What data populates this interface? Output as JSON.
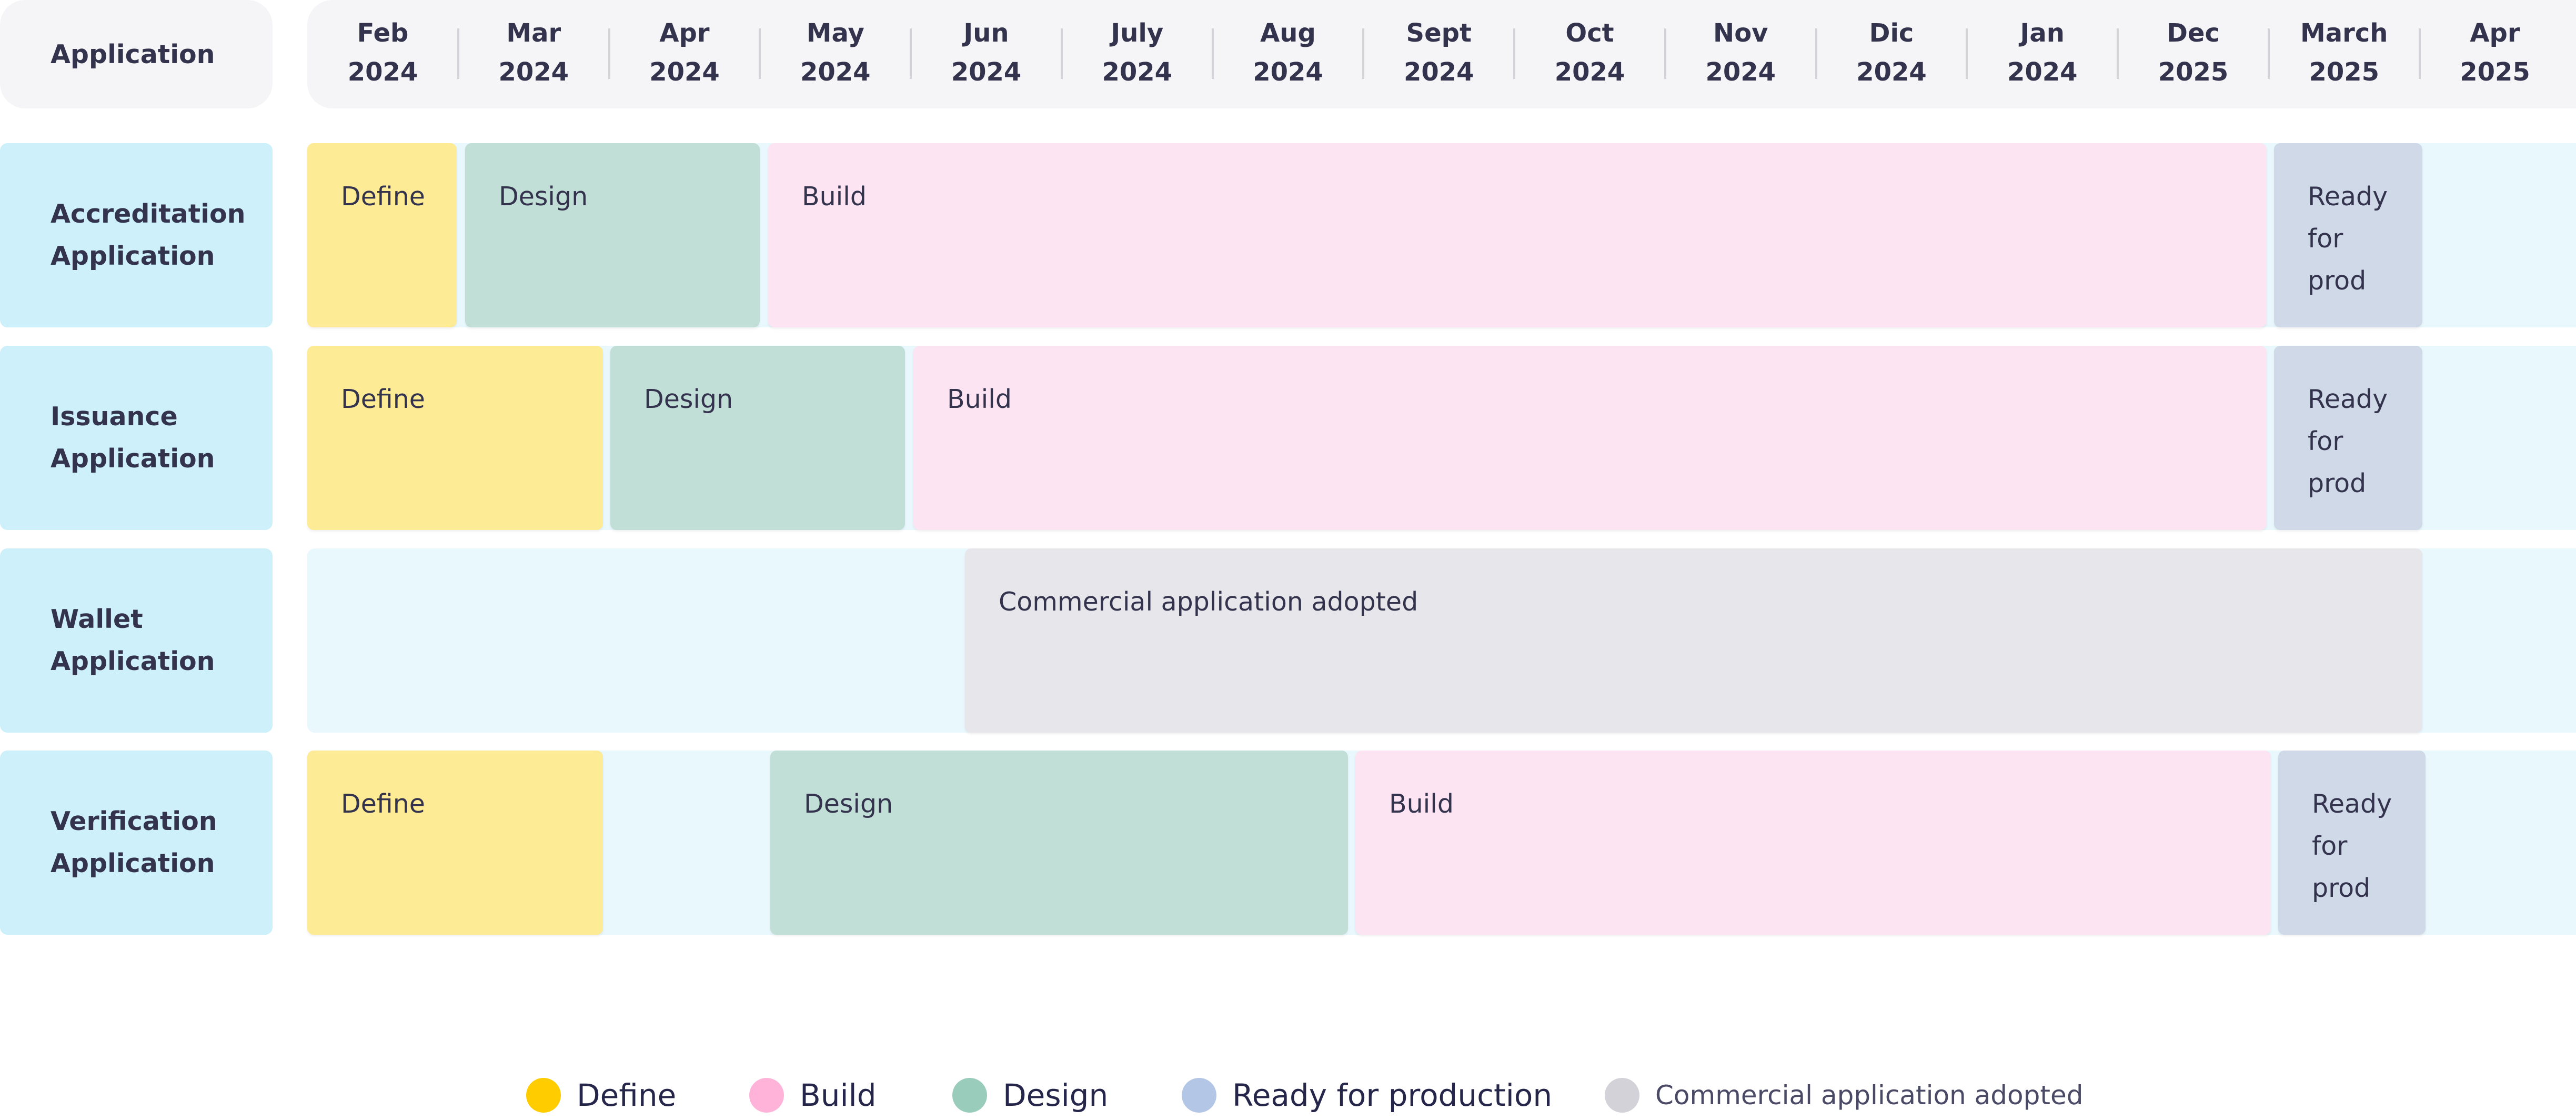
{
  "header": {
    "corner_label": "Application",
    "months": [
      {
        "m": "Feb",
        "y": "2024"
      },
      {
        "m": "Mar",
        "y": "2024"
      },
      {
        "m": "Apr",
        "y": "2024"
      },
      {
        "m": "May",
        "y": "2024"
      },
      {
        "m": "Jun",
        "y": "2024"
      },
      {
        "m": "July",
        "y": "2024"
      },
      {
        "m": "Aug",
        "y": "2024"
      },
      {
        "m": "Sept",
        "y": "2024"
      },
      {
        "m": "Oct",
        "y": "2024"
      },
      {
        "m": "Nov",
        "y": "2024"
      },
      {
        "m": "Dic",
        "y": "2024"
      },
      {
        "m": "Jan",
        "y": "2024"
      },
      {
        "m": "Dec",
        "y": "2025"
      },
      {
        "m": "March",
        "y": "2025"
      },
      {
        "m": "Apr",
        "y": "2025"
      }
    ]
  },
  "rows": [
    {
      "label": [
        "Accreditation",
        "Application"
      ],
      "segments": [
        {
          "phase": "define",
          "text": "Define"
        },
        {
          "phase": "design",
          "text": "Design"
        },
        {
          "phase": "build",
          "text": "Build"
        },
        {
          "phase": "ready",
          "text": "Ready for prod"
        }
      ]
    },
    {
      "label": [
        "Issuance",
        "Application"
      ],
      "segments": [
        {
          "phase": "define",
          "text": "Define"
        },
        {
          "phase": "design",
          "text": "Design"
        },
        {
          "phase": "build",
          "text": "Build"
        },
        {
          "phase": "ready",
          "text": "Ready for prod"
        }
      ]
    },
    {
      "label": [
        "Wallet",
        "Application"
      ],
      "segments": [
        {
          "phase": "commercial",
          "text": "Commercial application adopted"
        }
      ]
    },
    {
      "label": [
        "Verification",
        "Application"
      ],
      "segments": [
        {
          "phase": "define",
          "text": "Define"
        },
        {
          "phase": "design",
          "text": "Design"
        },
        {
          "phase": "build",
          "text": "Build"
        },
        {
          "phase": "ready",
          "text": "Ready for prod"
        }
      ]
    }
  ],
  "legend": [
    {
      "phase": "define",
      "label": "Define",
      "color": "#ffcc00"
    },
    {
      "phase": "build",
      "label": "Build",
      "color": "#ffb3d9"
    },
    {
      "phase": "design",
      "label": "Design",
      "color": "#99ccbb"
    },
    {
      "phase": "ready",
      "label": "Ready for production",
      "color": "#b3c6e6"
    },
    {
      "phase": "commercial",
      "label": "Commercial application adopted",
      "color": "#d2d2d8"
    }
  ]
}
